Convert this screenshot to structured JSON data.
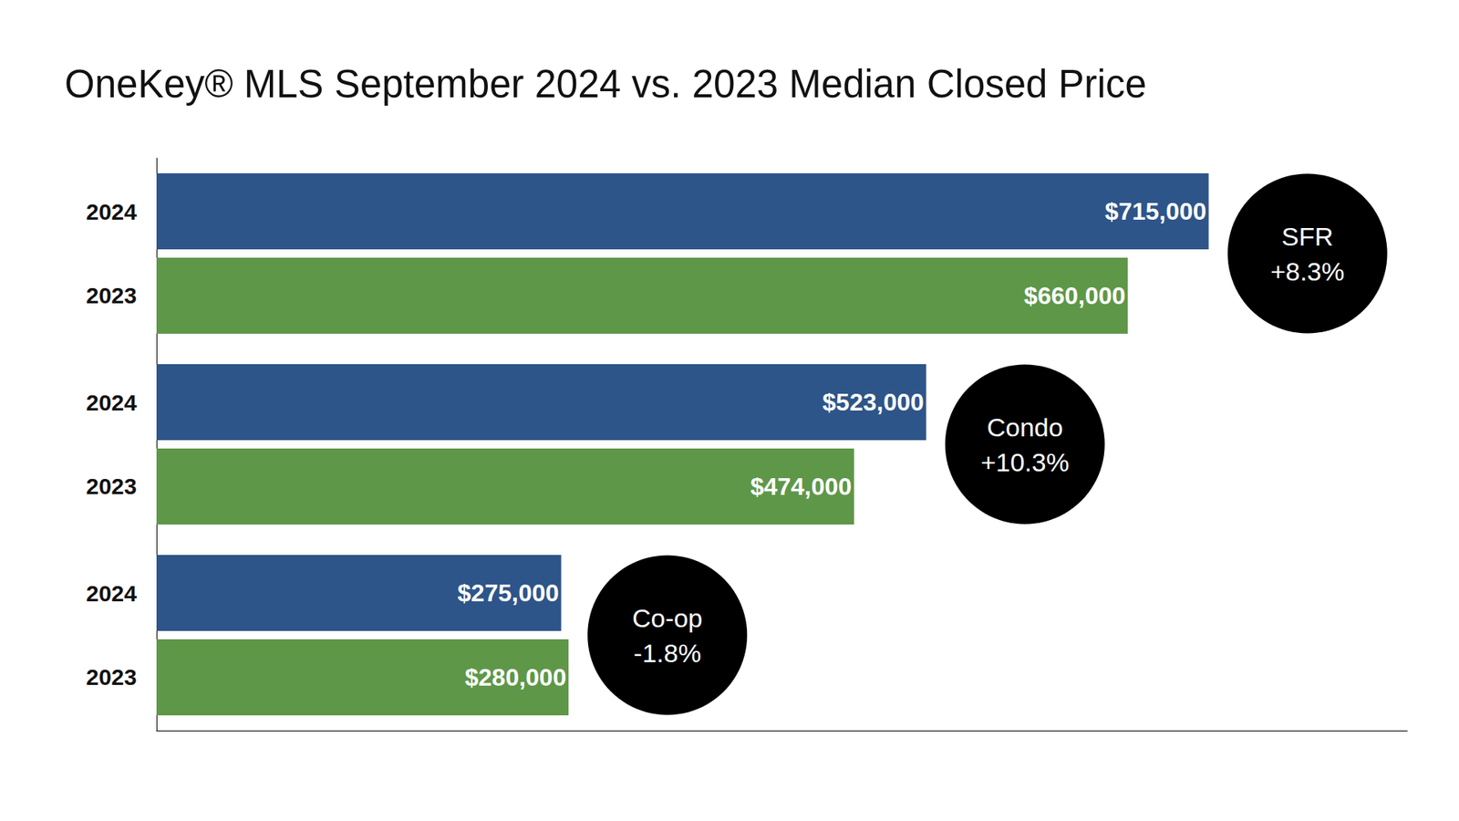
{
  "chart_data": {
    "type": "bar",
    "title": "OneKey® MLS September 2024 vs. 2023 Median Closed Price",
    "orientation": "horizontal",
    "categories": [
      "SFR",
      "Condo",
      "Co-op"
    ],
    "annotations": [
      "+8.3%",
      "+10.3%",
      "-1.8%"
    ],
    "series": [
      {
        "name": "2024",
        "color": "#2e5589",
        "values": [
          715000,
          523000,
          275000
        ],
        "value_labels": [
          "$715,000",
          "$523,000",
          "$275,000"
        ]
      },
      {
        "name": "2023",
        "color": "#5e9748",
        "values": [
          660000,
          474000,
          280000
        ],
        "value_labels": [
          "$660,000",
          "$474,000",
          "$280,000"
        ]
      }
    ],
    "xlim": [
      0,
      850000
    ],
    "data_labels": true,
    "grid": false,
    "tick_labels": false
  }
}
